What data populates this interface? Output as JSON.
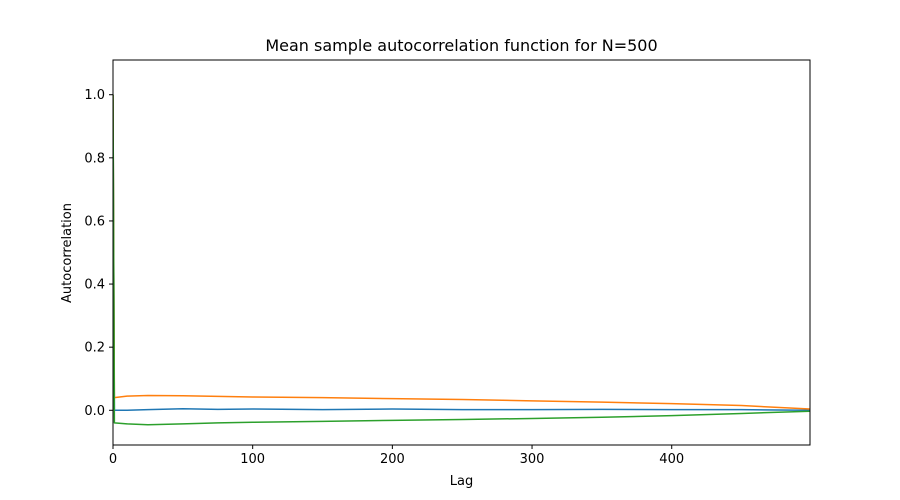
{
  "chart_data": {
    "type": "line",
    "title": "Mean sample autocorrelation function for N=500",
    "xlabel": "Lag",
    "ylabel": "Autocorrelation",
    "xlim": [
      0,
      499
    ],
    "ylim": [
      -0.11,
      1.11
    ],
    "xticks": [
      0,
      100,
      200,
      300,
      400
    ],
    "yticks": [
      0.0,
      0.2,
      0.4,
      0.6,
      0.8,
      1.0
    ],
    "ytick_labels": [
      "0.0",
      "0.2",
      "0.4",
      "0.6",
      "0.8",
      "1.0"
    ],
    "grid": false,
    "legend": false,
    "series": [
      {
        "color": "#1f77b4",
        "x": [
          0,
          1,
          10,
          25,
          50,
          75,
          100,
          150,
          200,
          250,
          300,
          350,
          400,
          450,
          499
        ],
        "y": [
          1.0,
          0.0,
          0.0,
          0.002,
          0.005,
          0.003,
          0.004,
          0.002,
          0.004,
          0.002,
          0.002,
          0.003,
          0.002,
          0.002,
          0.0
        ]
      },
      {
        "color": "#ff7f0e",
        "x": [
          0,
          1,
          10,
          25,
          50,
          75,
          100,
          150,
          200,
          250,
          300,
          350,
          400,
          450,
          499
        ],
        "y": [
          1.0,
          0.04,
          0.045,
          0.047,
          0.046,
          0.044,
          0.042,
          0.04,
          0.037,
          0.034,
          0.03,
          0.026,
          0.021,
          0.015,
          0.004
        ]
      },
      {
        "color": "#2ca02c",
        "x": [
          0,
          1,
          10,
          25,
          50,
          75,
          100,
          150,
          200,
          250,
          300,
          350,
          400,
          450,
          499
        ],
        "y": [
          1.0,
          -0.04,
          -0.043,
          -0.046,
          -0.043,
          -0.04,
          -0.038,
          -0.035,
          -0.032,
          -0.029,
          -0.026,
          -0.022,
          -0.017,
          -0.01,
          -0.003
        ]
      }
    ]
  }
}
